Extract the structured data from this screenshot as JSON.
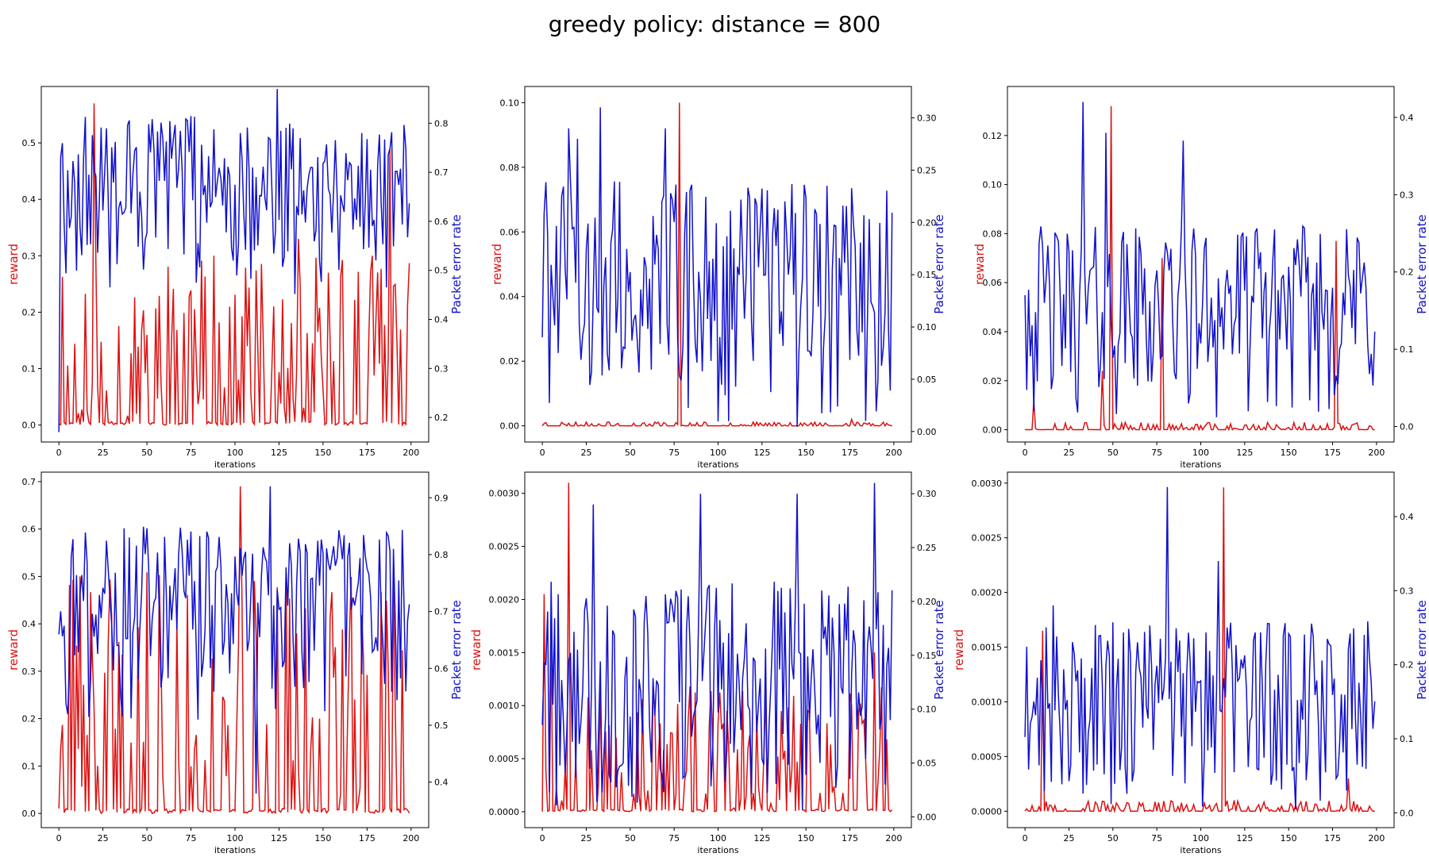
{
  "colors": {
    "reward": "#dd1111",
    "per": "#1111cc"
  },
  "chart_data": [
    {
      "type": "line",
      "title": "greedy policy: distance = 800",
      "panel": "top-left",
      "xlabel": "iterations",
      "ylabel_left": "reward",
      "ylabel_right": "Packet error rate",
      "xlim": [
        -10,
        210
      ],
      "ylim_left": [
        -0.03,
        0.6
      ],
      "ylim_right": [
        0.15,
        0.875
      ],
      "xticks": [
        "0",
        "25",
        "50",
        "75",
        "100",
        "125",
        "150",
        "175",
        "200"
      ],
      "yticks_left": [
        "0.0",
        "0.1",
        "0.2",
        "0.3",
        "0.4",
        "0.5"
      ],
      "yticks_right": [
        "0.2",
        "0.3",
        "0.4",
        "0.5",
        "0.6",
        "0.7",
        "0.8"
      ],
      "reward_peaks": [
        [
          20,
          0.57
        ],
        [
          188,
          0.49
        ],
        [
          88,
          0.3
        ],
        [
          136,
          0.33
        ],
        [
          178,
          0.3
        ]
      ],
      "reward_base": 0.0,
      "reward_max": 0.3,
      "per_peaks": [
        [
          124,
          0.87
        ],
        [
          1,
          0.73
        ],
        [
          0,
          0.17
        ]
      ],
      "per_base": 0.45,
      "per_max": 0.82,
      "seed": 11
    },
    {
      "type": "line",
      "panel": "top-center",
      "xlabel": "iterations",
      "ylabel_left": "reward",
      "ylabel_right": "Packet error rate",
      "xlim": [
        -10,
        210
      ],
      "ylim_left": [
        -0.005,
        0.105
      ],
      "ylim_right": [
        -0.01,
        0.33
      ],
      "xticks": [
        "0",
        "25",
        "50",
        "75",
        "100",
        "125",
        "150",
        "175",
        "200"
      ],
      "yticks_left": [
        "0.00",
        "0.02",
        "0.04",
        "0.06",
        "0.08",
        "0.10"
      ],
      "yticks_right": [
        "0.00",
        "0.05",
        "0.10",
        "0.15",
        "0.20",
        "0.25",
        "0.30"
      ],
      "reward_peaks": [
        [
          78,
          0.1
        ],
        [
          176,
          0.002
        ]
      ],
      "reward_base": 0.0,
      "reward_max": 0.0012,
      "per_peaks": [
        [
          33,
          0.31
        ],
        [
          70,
          0.29
        ],
        [
          15,
          0.29
        ],
        [
          20,
          0.28
        ]
      ],
      "per_base": 0.0,
      "per_max": 0.24,
      "seed": 23
    },
    {
      "type": "line",
      "panel": "top-right",
      "xlabel": "iterations",
      "ylabel_left": "reward",
      "ylabel_right": "Packet error rate",
      "xlim": [
        -10,
        210
      ],
      "ylim_left": [
        -0.005,
        0.14
      ],
      "ylim_right": [
        -0.02,
        0.44
      ],
      "xticks": [
        "0",
        "25",
        "50",
        "75",
        "100",
        "125",
        "150",
        "175",
        "200"
      ],
      "yticks_left": [
        "0.00",
        "0.02",
        "0.04",
        "0.06",
        "0.08",
        "0.10",
        "0.12"
      ],
      "yticks_right": [
        "0.0",
        "0.1",
        "0.2",
        "0.3",
        "0.4"
      ],
      "reward_peaks": [
        [
          49,
          0.132
        ],
        [
          78,
          0.07
        ],
        [
          177,
          0.077
        ],
        [
          44,
          0.024
        ],
        [
          5,
          0.012
        ]
      ],
      "reward_base": 0.0,
      "reward_max": 0.003,
      "per_peaks": [
        [
          33,
          0.42
        ],
        [
          46,
          0.38
        ],
        [
          90,
          0.37
        ],
        [
          0,
          0.17
        ]
      ],
      "per_base": 0.0,
      "per_max": 0.26,
      "seed": 37
    },
    {
      "type": "line",
      "panel": "bottom-left",
      "xlabel": "iterations",
      "ylabel_left": "reward",
      "ylabel_right": "Packet error rate",
      "xlim": [
        -10,
        210
      ],
      "ylim_left": [
        -0.03,
        0.72
      ],
      "ylim_right": [
        0.32,
        0.945
      ],
      "xticks": [
        "0",
        "25",
        "50",
        "75",
        "100",
        "125",
        "150",
        "175",
        "200"
      ],
      "yticks_left": [
        "0.0",
        "0.1",
        "0.2",
        "0.3",
        "0.4",
        "0.5",
        "0.6",
        "0.7"
      ],
      "yticks_right": [
        "0.4",
        "0.5",
        "0.6",
        "0.7",
        "0.8",
        "0.9"
      ],
      "reward_peaks": [
        [
          103,
          0.69
        ],
        [
          12,
          0.5
        ],
        [
          20,
          0.22
        ]
      ],
      "reward_base": 0.0,
      "reward_max": 0.52,
      "per_peaks": [
        [
          120,
          0.92
        ],
        [
          0,
          0.66
        ],
        [
          112,
          0.38
        ]
      ],
      "per_base": 0.5,
      "per_max": 0.85,
      "seed": 41
    },
    {
      "type": "line",
      "panel": "bottom-center",
      "xlabel": "iterations",
      "ylabel_left": "reward",
      "ylabel_right": "Packet error rate",
      "xlim": [
        -10,
        210
      ],
      "ylim_left": [
        -0.00015,
        0.0032
      ],
      "ylim_right": [
        -0.01,
        0.32
      ],
      "xticks": [
        "0",
        "25",
        "50",
        "75",
        "100",
        "125",
        "150",
        "175",
        "200"
      ],
      "yticks_left": [
        "0.0000",
        "0.0005",
        "0.0010",
        "0.0015",
        "0.0020",
        "0.0025",
        "0.0030"
      ],
      "yticks_right": [
        "0.00",
        "0.05",
        "0.10",
        "0.15",
        "0.20",
        "0.25",
        "0.30"
      ],
      "reward_peaks": [
        [
          15,
          0.0031
        ],
        [
          1,
          0.00205
        ],
        [
          5,
          0.0017
        ],
        [
          189,
          0.0015
        ]
      ],
      "reward_base": 0.0,
      "reward_max": 0.0012,
      "per_peaks": [
        [
          189,
          0.31
        ],
        [
          90,
          0.3
        ],
        [
          145,
          0.3
        ],
        [
          29,
          0.29
        ]
      ],
      "per_base": 0.0,
      "per_max": 0.22,
      "seed": 53
    },
    {
      "type": "line",
      "panel": "bottom-right",
      "xlabel": "iterations",
      "ylabel_left": "reward",
      "ylabel_right": "Packet error rate",
      "xlim": [
        -10,
        210
      ],
      "ylim_left": [
        -0.00015,
        0.0031
      ],
      "ylim_right": [
        -0.02,
        0.46
      ],
      "xticks": [
        "0",
        "25",
        "50",
        "75",
        "100",
        "125",
        "150",
        "175",
        "200"
      ],
      "yticks_left": [
        "0.0000",
        "0.0005",
        "0.0010",
        "0.0015",
        "0.0020",
        "0.0025",
        "0.0030"
      ],
      "yticks_right": [
        "0.0",
        "0.1",
        "0.2",
        "0.3",
        "0.4"
      ],
      "reward_peaks": [
        [
          113,
          0.00296
        ],
        [
          10,
          0.00165
        ],
        [
          184,
          0.0003
        ]
      ],
      "reward_base": 0.0,
      "reward_max": 0.0001,
      "per_peaks": [
        [
          81,
          0.44
        ],
        [
          110,
          0.34
        ],
        [
          16,
          0.28
        ]
      ],
      "per_base": 0.0,
      "per_max": 0.26,
      "seed": 67
    }
  ]
}
